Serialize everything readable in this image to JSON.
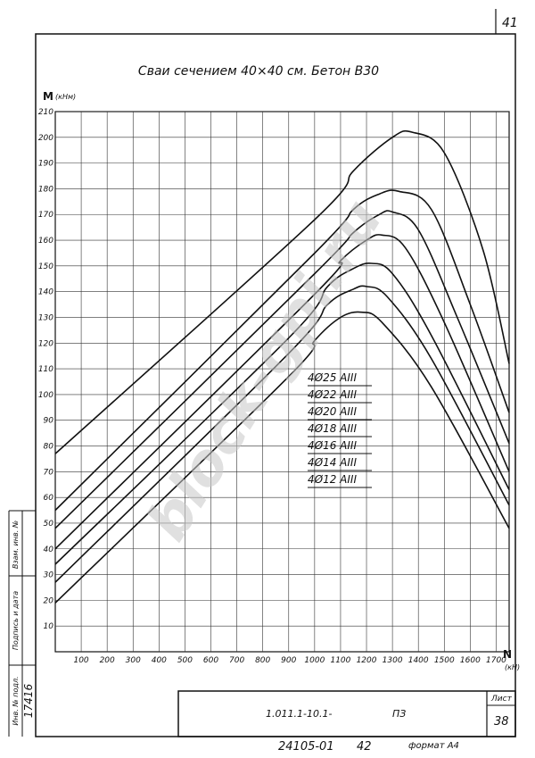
{
  "page_number": "41",
  "chart_data": {
    "type": "line",
    "title": "Сваи сечением 40×40 см. Бетон В30",
    "xlabel": "N",
    "x_unit": "(кН)",
    "ylabel": "M",
    "y_unit": "(кНм)",
    "xlim": [
      0,
      1750
    ],
    "ylim": [
      0,
      210
    ],
    "x_ticks": [
      100,
      200,
      300,
      400,
      500,
      600,
      700,
      800,
      900,
      1000,
      1100,
      1200,
      1300,
      1400,
      1500,
      1600,
      1700
    ],
    "y_ticks": [
      10,
      20,
      30,
      40,
      50,
      60,
      70,
      80,
      90,
      100,
      110,
      120,
      130,
      140,
      150,
      160,
      170,
      180,
      190,
      200,
      210
    ],
    "grid": true,
    "series": [
      {
        "name": "4Ø25 AIII",
        "x": [
          0,
          1000,
          1150,
          1300,
          1375,
          1500,
          1650,
          1750
        ],
        "y": [
          77,
          168,
          187,
          200,
          202,
          194,
          156,
          112
        ]
      },
      {
        "name": "4Ø22 AIII",
        "x": [
          0,
          1000,
          1150,
          1250,
          1325,
          1450,
          1600,
          1750
        ],
        "y": [
          55,
          155,
          172,
          178,
          179,
          172,
          135,
          93
        ]
      },
      {
        "name": "4Ø20 AIII",
        "x": [
          0,
          1000,
          1150,
          1250,
          1300,
          1400,
          1550,
          1750
        ],
        "y": [
          48,
          147,
          163,
          170,
          171,
          164,
          130,
          81
        ]
      },
      {
        "name": "4Ø18 AIII",
        "x": [
          0,
          1000,
          1100,
          1200,
          1260,
          1350,
          1500,
          1750
        ],
        "y": [
          40,
          139,
          152,
          160,
          162,
          157,
          128,
          70
        ]
      },
      {
        "name": "4Ø16 AIII",
        "x": [
          0,
          900,
          1050,
          1150,
          1220,
          1300,
          1450,
          1750
        ],
        "y": [
          34,
          122,
          142,
          149,
          151,
          147,
          123,
          63
        ]
      },
      {
        "name": "4Ø14 AIII",
        "x": [
          0,
          900,
          1050,
          1150,
          1200,
          1280,
          1450,
          1750
        ],
        "y": [
          27,
          116,
          135,
          141,
          142,
          138,
          114,
          57
        ]
      },
      {
        "name": "4Ø12 AIII",
        "x": [
          0,
          900,
          1000,
          1100,
          1180,
          1260,
          1450,
          1750
        ],
        "y": [
          19,
          107,
          121,
          130,
          132,
          128,
          103,
          48
        ]
      }
    ]
  },
  "stamp": {
    "doc_code": "1.011.1-10.1-",
    "doc_type": "ПЗ",
    "sheet_label": "Лист",
    "sheet_number": "38",
    "bottom_code": "24105-01",
    "bottom_num": "42",
    "format": "формат А4"
  },
  "side_labels": {
    "inv_no": "Инв. № подл.",
    "sign_date": "Подпись и дата",
    "replace_inv": "Взам. инв. №",
    "inv_value": "17416"
  },
  "watermark": "block-gpi.ru"
}
